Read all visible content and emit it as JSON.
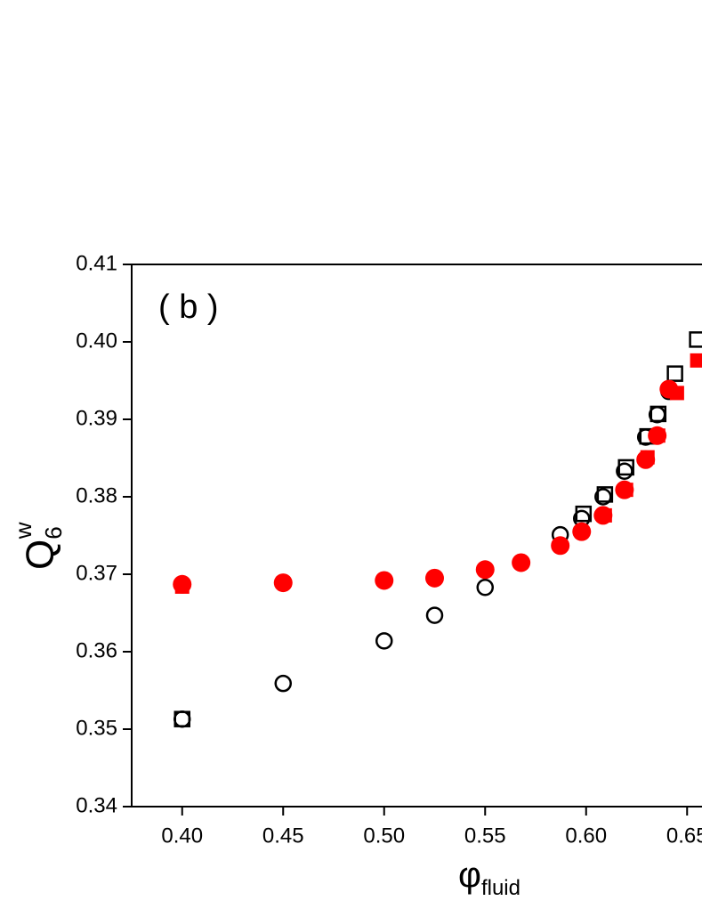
{
  "chart_data": {
    "type": "scatter",
    "annotation": "( b )",
    "xlabel": {
      "base": "φ",
      "sub": "fluid"
    },
    "ylabel": {
      "base": "Q",
      "sub": "6",
      "sup": "w"
    },
    "xlim": [
      0.375,
      0.675
    ],
    "ylim": [
      0.34,
      0.41
    ],
    "xticks": [
      {
        "value": 0.4,
        "label": "0.40"
      },
      0.45,
      {
        "value": 0.5,
        "label": "0.50"
      },
      0.55,
      {
        "value": 0.6,
        "label": "0.60"
      },
      0.65
    ],
    "yticks": [
      0.34,
      0.35,
      0.36,
      0.37,
      0.38,
      0.39,
      {
        "value": 0.4,
        "label": "0.40"
      },
      0.41
    ],
    "series": [
      {
        "marker": "open-square",
        "color": "#000000",
        "x": [
          0.4,
          0.5987,
          0.6093,
          0.6198,
          0.6304,
          0.6357,
          0.644,
          0.655
        ],
        "values": [
          0.3513,
          0.3778,
          0.3803,
          0.3838,
          0.3878,
          0.3907,
          0.3959,
          0.4003
        ]
      },
      {
        "marker": "open-circle",
        "color": "#000000",
        "x": [
          0.4,
          0.45,
          0.5,
          0.525,
          0.55,
          0.5678,
          0.5872,
          0.5978,
          0.6084,
          0.619,
          0.6295,
          0.6352,
          0.641
        ],
        "values": [
          0.3513,
          0.3559,
          0.3614,
          0.3647,
          0.3683,
          0.3715,
          0.3751,
          0.3772,
          0.38,
          0.3833,
          0.3877,
          0.3906,
          0.3936
        ]
      },
      {
        "marker": "filled-square",
        "color": "#ff0000",
        "x": [
          0.4,
          0.6093,
          0.6198,
          0.6304,
          0.6357,
          0.645,
          0.655
        ],
        "values": [
          0.3684,
          0.3776,
          0.3809,
          0.3851,
          0.3879,
          0.3934,
          0.3976
        ]
      },
      {
        "marker": "filled-circle",
        "color": "#ff0000",
        "x": [
          0.4,
          0.45,
          0.5,
          0.525,
          0.55,
          0.5678,
          0.5872,
          0.5978,
          0.6084,
          0.619,
          0.6295,
          0.6352,
          0.641
        ],
        "values": [
          0.3687,
          0.3689,
          0.3692,
          0.3695,
          0.3706,
          0.3715,
          0.3737,
          0.3755,
          0.3776,
          0.3809,
          0.3848,
          0.3879,
          0.3939
        ]
      }
    ]
  }
}
